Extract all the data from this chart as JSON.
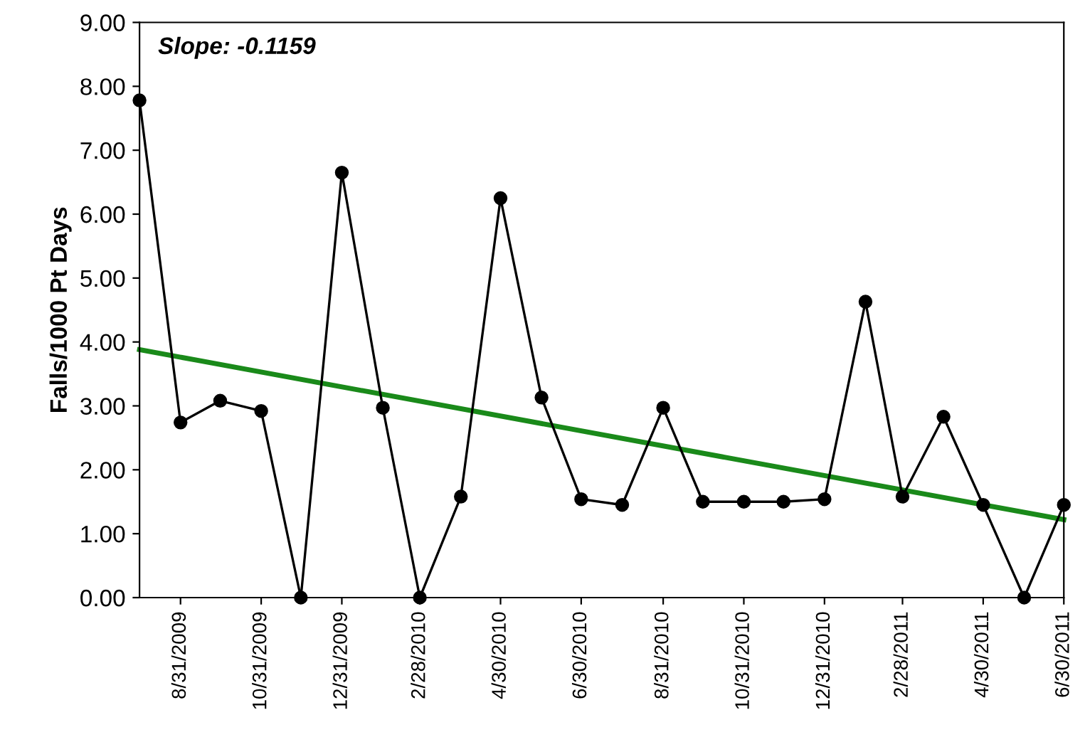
{
  "chart_data": {
    "type": "line",
    "ylabel": "Falls/1000 Pt Days",
    "annotations": [
      "Slope: -0.1159"
    ],
    "x": [
      "2009-07-31",
      "2009-08-31",
      "2009-09-30",
      "2009-10-31",
      "2009-11-30",
      "2009-12-31",
      "2010-01-31",
      "2010-02-28",
      "2010-03-31",
      "2010-04-30",
      "2010-05-31",
      "2010-06-30",
      "2010-07-31",
      "2010-08-31",
      "2010-09-30",
      "2010-10-31",
      "2010-11-30",
      "2010-12-31",
      "2011-01-31",
      "2011-02-28",
      "2011-03-31",
      "2011-04-30",
      "2011-05-31",
      "2011-06-30"
    ],
    "series": [
      {
        "color": "#000000",
        "marker": "circle",
        "values": [
          7.78,
          2.74,
          3.08,
          2.92,
          0,
          6.65,
          2.97,
          0,
          1.58,
          6.25,
          3.13,
          1.54,
          1.45,
          2.97,
          1.5,
          1.5,
          1.5,
          1.54,
          4.63,
          1.58,
          2.83,
          1.45,
          0,
          1.45
        ]
      },
      {
        "color": "#1a8a1a",
        "marker": "none",
        "x": [
          "2009-07-31",
          "2011-06-30"
        ],
        "values": [
          3.88,
          1.22
        ]
      }
    ],
    "xlim": [
      "2009-07-31",
      "2011-06-30"
    ],
    "xticks": [
      {
        "value": "2009-08-31",
        "label": "8/31/2009"
      },
      {
        "value": "2009-10-31",
        "label": "10/31/2009"
      },
      {
        "value": "2009-12-31",
        "label": "12/31/2009"
      },
      {
        "value": "2010-02-28",
        "label": "2/28/2010"
      },
      {
        "value": "2010-04-30",
        "label": "4/30/2010"
      },
      {
        "value": "2010-06-30",
        "label": "6/30/2010"
      },
      {
        "value": "2010-08-31",
        "label": "8/31/2010"
      },
      {
        "value": "2010-10-31",
        "label": "10/31/2010"
      },
      {
        "value": "2010-12-31",
        "label": "12/31/2010"
      },
      {
        "value": "2011-02-28",
        "label": "2/28/2011"
      },
      {
        "value": "2011-04-30",
        "label": "4/30/2011"
      },
      {
        "value": "2011-06-30",
        "label": "6/30/2011"
      }
    ],
    "ylim": [
      0,
      9
    ],
    "yticks": [
      {
        "value": 0,
        "label": "0.00"
      },
      {
        "value": 1,
        "label": "1.00"
      },
      {
        "value": 2,
        "label": "2.00"
      },
      {
        "value": 3,
        "label": "3.00"
      },
      {
        "value": 4,
        "label": "4.00"
      },
      {
        "value": 5,
        "label": "5.00"
      },
      {
        "value": 6,
        "label": "6.00"
      },
      {
        "value": 7,
        "label": "7.00"
      },
      {
        "value": 8,
        "label": "8.00"
      },
      {
        "value": 9,
        "label": "9.00"
      }
    ],
    "grid": false,
    "legend": false
  }
}
